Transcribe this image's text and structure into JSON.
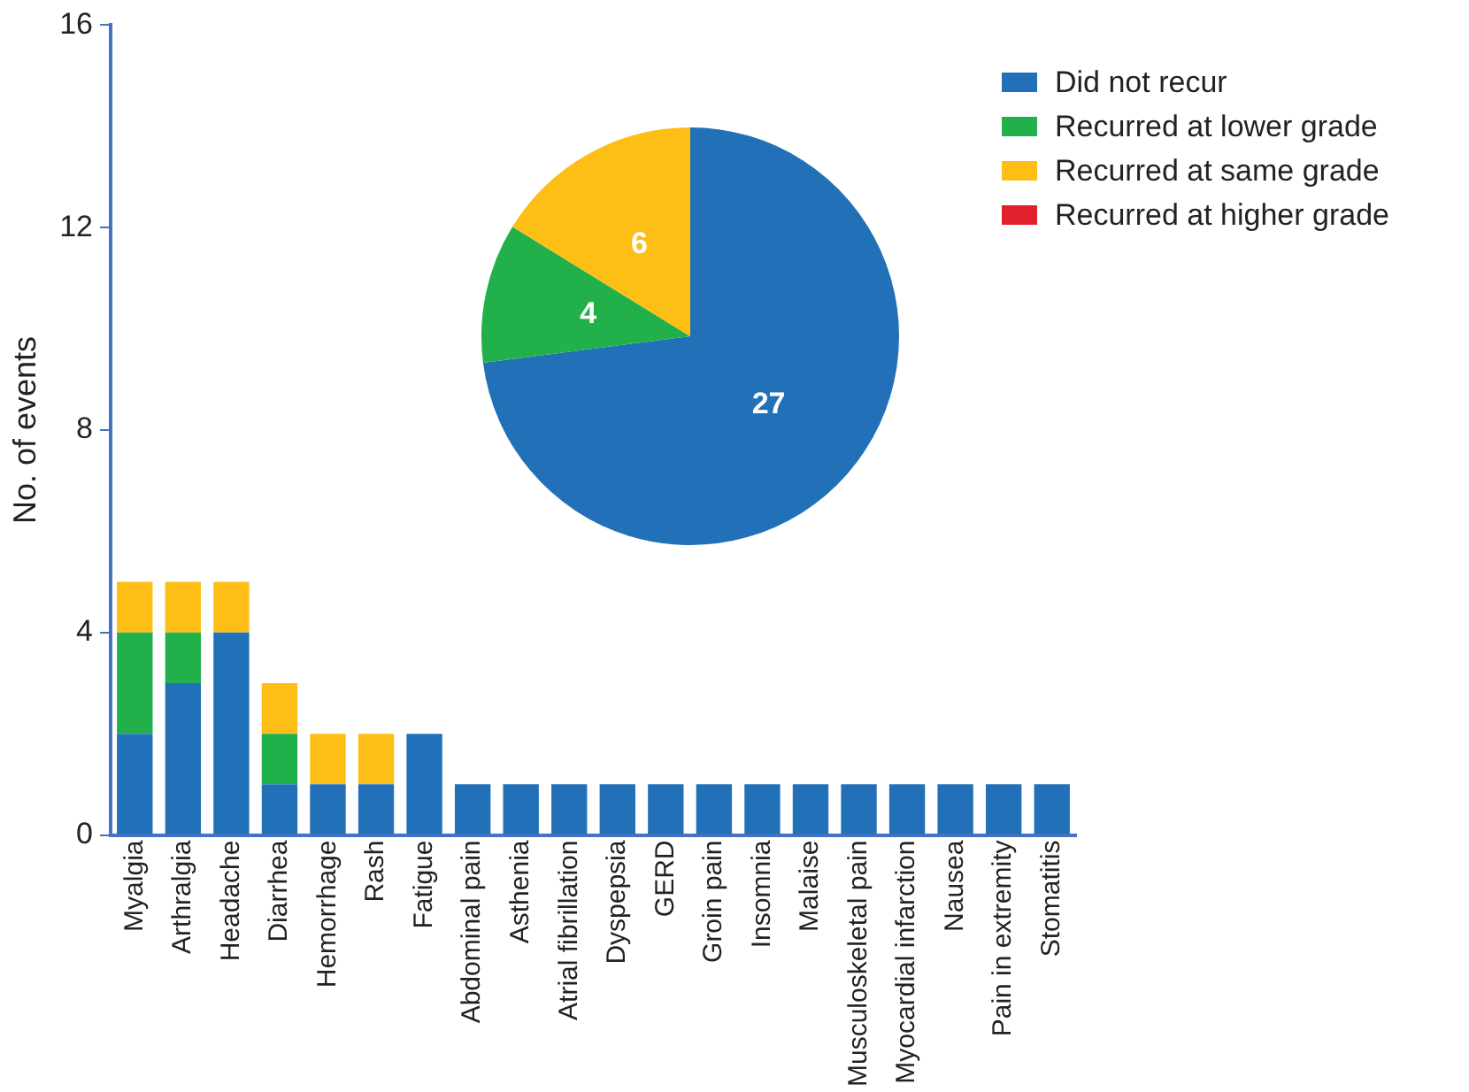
{
  "chart_data": [
    {
      "type": "bar",
      "ylabel": "No. of events",
      "stacked": true,
      "ylim": [
        0,
        16
      ],
      "yticks": [
        0,
        4,
        8,
        12,
        16
      ],
      "categories": [
        "Myalgia",
        "Arthralgia",
        "Headache",
        "Diarrhea",
        "Hemorrhage",
        "Rash",
        "Fatigue",
        "Abdominal pain",
        "Asthenia",
        "Atrial fibrillation",
        "Dyspepsia",
        "GERD",
        "Groin pain",
        "Insomnia",
        "Malaise",
        "Musculoskeletal pain",
        "Myocardial infarction",
        "Nausea",
        "Pain in extremity",
        "Stomatitis"
      ],
      "series": [
        {
          "color": "#2271b8",
          "values": [
            2,
            3,
            4,
            1,
            1,
            1,
            2,
            1,
            1,
            1,
            1,
            1,
            1,
            1,
            1,
            1,
            1,
            1,
            1,
            1
          ]
        },
        {
          "color": "#22b04b",
          "values": [
            2,
            1,
            0,
            1,
            0,
            0,
            0,
            0,
            0,
            0,
            0,
            0,
            0,
            0,
            0,
            0,
            0,
            0,
            0,
            0
          ]
        },
        {
          "color": "#fdbe16",
          "values": [
            1,
            1,
            1,
            1,
            1,
            1,
            0,
            0,
            0,
            0,
            0,
            0,
            0,
            0,
            0,
            0,
            0,
            0,
            0,
            0
          ]
        },
        {
          "color": "#e0202a",
          "values": [
            0,
            0,
            0,
            0,
            0,
            0,
            0,
            0,
            0,
            0,
            0,
            0,
            0,
            0,
            0,
            0,
            0,
            0,
            0,
            0
          ]
        }
      ]
    },
    {
      "type": "pie",
      "categories": [
        "Did not recur",
        "Recurred at lower grade",
        "Recurred at same grade",
        "Recurred at higher grade"
      ],
      "values": [
        27,
        4,
        6,
        0
      ],
      "colors": [
        "#2271b8",
        "#22b04b",
        "#fdbe16",
        "#e0202a"
      ],
      "data_labels": true,
      "legend": "top right"
    }
  ]
}
